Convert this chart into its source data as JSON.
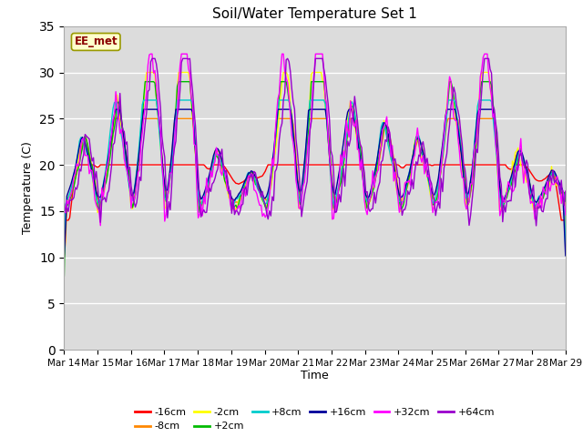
{
  "title": "Soil/Water Temperature Set 1",
  "xlabel": "Time",
  "ylabel": "Temperature (C)",
  "ylim": [
    0,
    35
  ],
  "yticks": [
    0,
    5,
    10,
    15,
    20,
    25,
    30,
    35
  ],
  "xtick_labels": [
    "Mar 14",
    "Mar 15",
    "Mar 16",
    "Mar 17",
    "Mar 18",
    "Mar 19",
    "Mar 20",
    "Mar 21",
    "Mar 22",
    "Mar 23",
    "Mar 24",
    "Mar 25",
    "Mar 26",
    "Mar 27",
    "Mar 28",
    "Mar 29"
  ],
  "legend_entries": [
    "-16cm",
    "-8cm",
    "-2cm",
    "+2cm",
    "+8cm",
    "+16cm",
    "+32cm",
    "+64cm"
  ],
  "legend_colors": [
    "#ff0000",
    "#ff8800",
    "#ffff00",
    "#00bb00",
    "#00cccc",
    "#000099",
    "#ff00ff",
    "#9900cc"
  ],
  "watermark": "EE_met",
  "background_color": "#dcdcdc",
  "line_width": 1.0,
  "n_points": 360
}
